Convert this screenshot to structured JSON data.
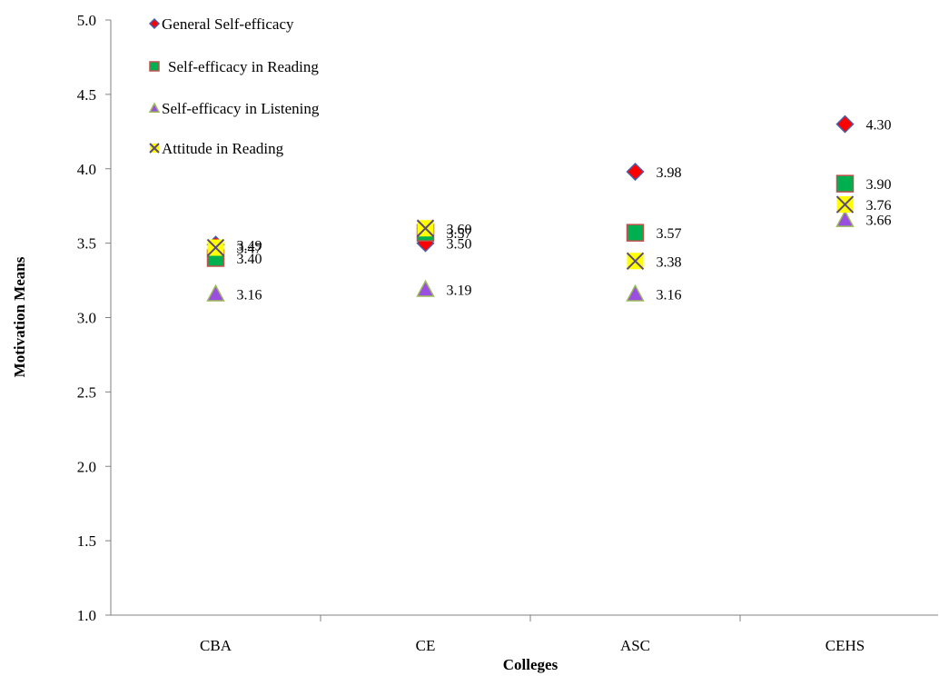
{
  "chart_data": {
    "type": "scatter",
    "categories": [
      "CBA",
      "CE",
      "ASC",
      "CEHS"
    ],
    "xlabel": "Colleges",
    "ylabel": "Motivation Means",
    "ylim": [
      1.0,
      5.0
    ],
    "yticks": [
      "1.0",
      "1.5",
      "2.0",
      "2.5",
      "3.0",
      "3.5",
      "4.0",
      "4.5",
      "5.0"
    ],
    "grid": false,
    "legend_position": "top-left",
    "series": [
      {
        "name": "General Self-efficacy",
        "marker": "diamond",
        "fill": "#ff0000",
        "stroke": "#4a5fa8",
        "values": [
          3.49,
          3.5,
          3.98,
          4.3
        ],
        "labels": [
          "3.49",
          "3.50",
          "3.98",
          "4.30"
        ]
      },
      {
        "name": "Self-efficacy in Reading",
        "marker": "square",
        "fill": "#00b050",
        "stroke": "#c0504d",
        "values": [
          3.4,
          3.57,
          3.57,
          3.9
        ],
        "labels": [
          "3.40",
          "3.57",
          "3.57",
          "3.90"
        ]
      },
      {
        "name": "Self-efficacy in Listening",
        "marker": "triangle",
        "fill": "#9b4fe0",
        "stroke": "#9bbb59",
        "values": [
          3.16,
          3.19,
          3.16,
          3.66
        ],
        "labels": [
          "3.16",
          "3.19",
          "3.16",
          "3.66"
        ]
      },
      {
        "name": "Attitude in Reading",
        "marker": "x",
        "fill": "#ffff00",
        "stroke": "#5a4a7a",
        "values": [
          3.47,
          3.6,
          3.38,
          3.76
        ],
        "labels": [
          "3.47",
          "3.60",
          "3.38",
          "3.76"
        ]
      }
    ]
  }
}
